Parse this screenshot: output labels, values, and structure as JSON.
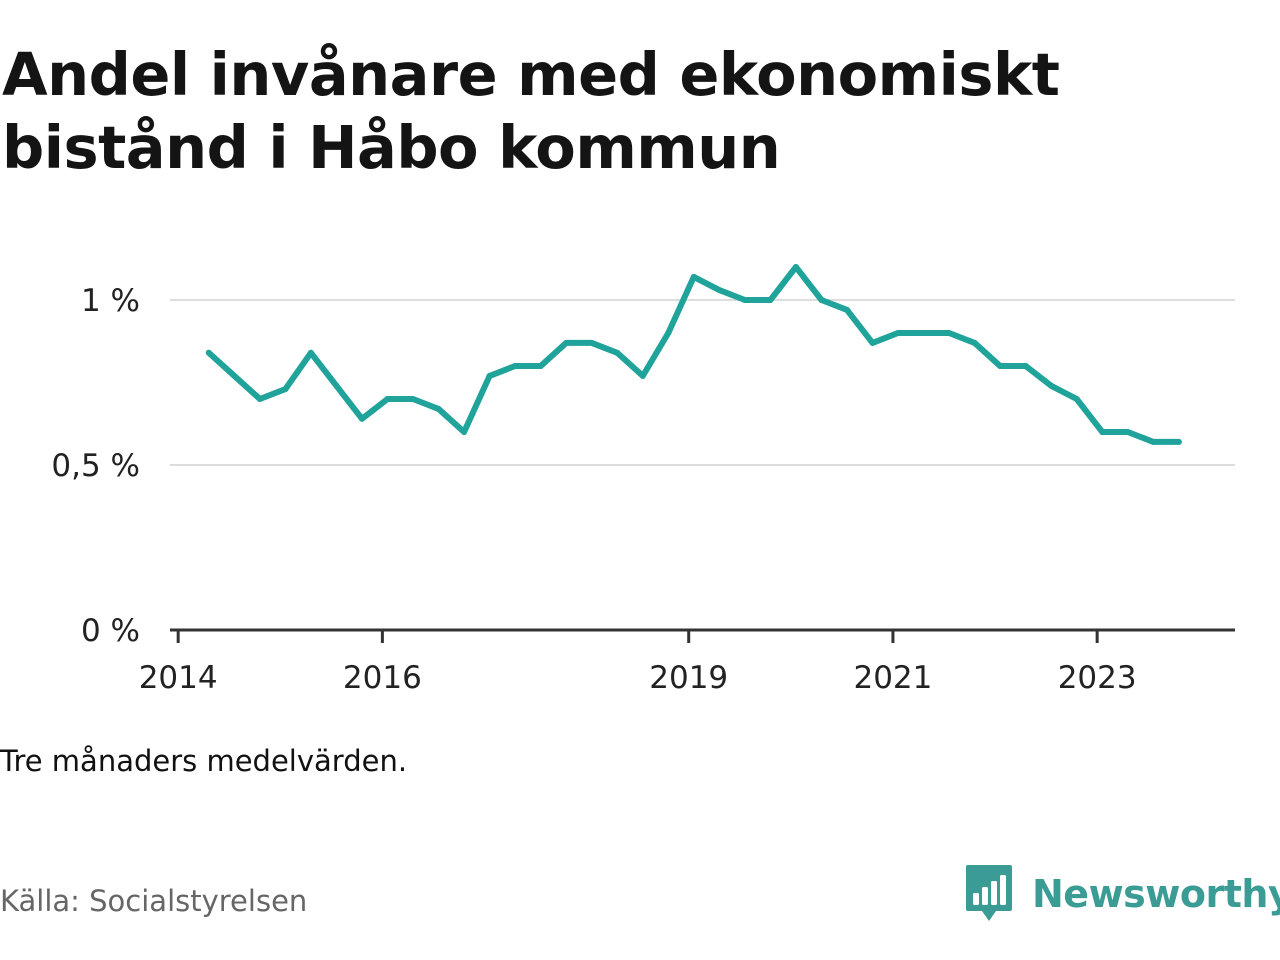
{
  "title": "Andel invånare med ekonomiskt bistånd i Håbo kommun",
  "note": "Tre månaders medelvärden.",
  "source": "Källa: Socialstyrelsen",
  "brand": {
    "name": "Newsworthy",
    "color": "#3a9c94",
    "icon": "bar-chart-bubble-icon"
  },
  "colors": {
    "line": "#1fa39a",
    "grid": "#dddddd",
    "axis": "#333333"
  },
  "chart_data": {
    "type": "line",
    "title": "Andel invånare med ekonomiskt bistånd i Håbo kommun",
    "xlabel": "",
    "ylabel": "",
    "ylim": [
      0,
      1.1
    ],
    "grid": true,
    "x_ticks": [
      {
        "label": "2014",
        "value": 2014.0
      },
      {
        "label": "2016",
        "value": 2016.0
      },
      {
        "label": "2019",
        "value": 2019.0
      },
      {
        "label": "2021",
        "value": 2021.0
      },
      {
        "label": "2023",
        "value": 2023.0
      }
    ],
    "y_ticks": [
      {
        "label": "0 %",
        "value": 0
      },
      {
        "label": "0,5 %",
        "value": 0.5
      },
      {
        "label": "1 %",
        "value": 1.0
      }
    ],
    "series": [
      {
        "x": [
          2014.3,
          2014.55,
          2014.8,
          2015.05,
          2015.3,
          2015.55,
          2015.8,
          2016.05,
          2016.3,
          2016.55,
          2016.8,
          2017.05,
          2017.3,
          2017.55,
          2017.8,
          2018.05,
          2018.3,
          2018.55,
          2018.8,
          2019.05,
          2019.3,
          2019.55,
          2019.8,
          2020.05,
          2020.3,
          2020.55,
          2020.8,
          2021.05,
          2021.3,
          2021.55,
          2021.8,
          2022.05,
          2022.3,
          2022.55,
          2022.8,
          2023.05,
          2023.3,
          2023.55,
          2023.8
        ],
        "y": [
          0.84,
          0.77,
          0.7,
          0.73,
          0.84,
          0.74,
          0.64,
          0.7,
          0.7,
          0.67,
          0.6,
          0.77,
          0.8,
          0.8,
          0.87,
          0.87,
          0.84,
          0.77,
          0.9,
          1.07,
          1.03,
          1.0,
          1.0,
          1.1,
          1.0,
          0.97,
          0.87,
          0.9,
          0.9,
          0.9,
          0.87,
          0.8,
          0.8,
          0.74,
          0.7,
          0.6,
          0.6,
          0.57,
          0.57
        ]
      }
    ]
  }
}
